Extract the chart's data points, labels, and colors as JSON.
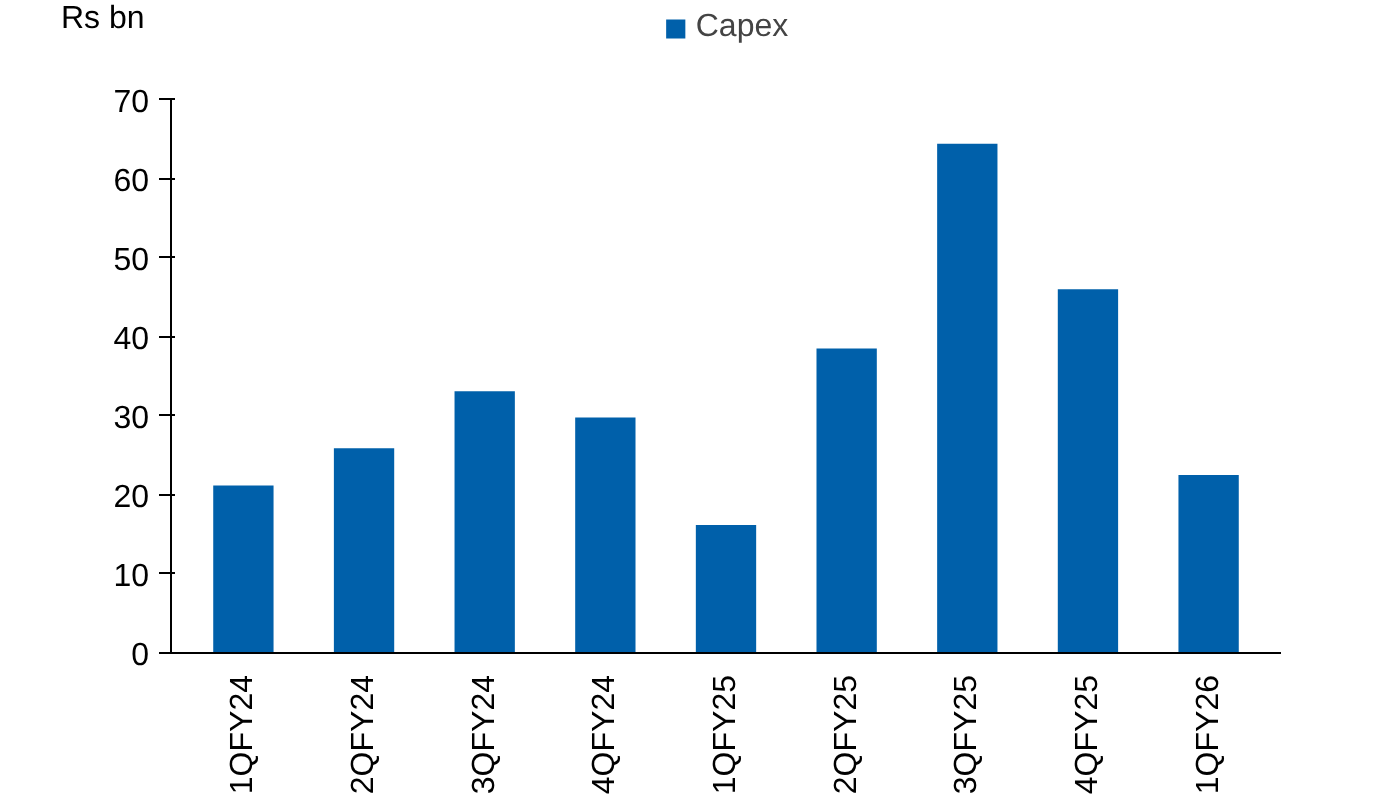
{
  "chart_data": {
    "type": "bar",
    "ylabel": "Rs bn",
    "categories": [
      "1QFY24",
      "2QFY24",
      "3QFY24",
      "4QFY24",
      "1QFY25",
      "2QFY25",
      "3QFY25",
      "4QFY25",
      "1QFY26"
    ],
    "series": [
      {
        "name": "Capex",
        "color": "#0060aa",
        "values": [
          21.2,
          25.9,
          33.1,
          29.8,
          16.2,
          38.5,
          64.4,
          46.0,
          22.5
        ]
      }
    ],
    "ylim": [
      0,
      70
    ],
    "yticks": [
      0,
      10,
      20,
      30,
      40,
      50,
      60,
      70
    ],
    "grid": false,
    "legend": "top"
  }
}
